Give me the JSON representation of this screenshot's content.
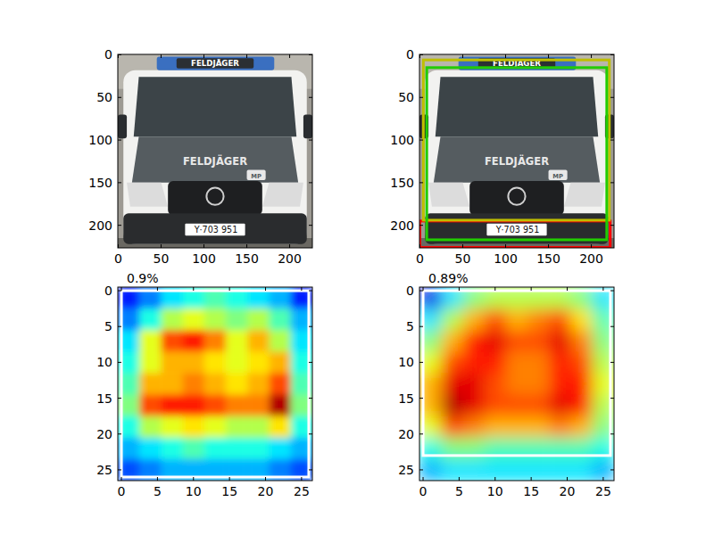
{
  "chart_data": [
    {
      "type": "image",
      "xlim": [
        -0.5,
        226.5
      ],
      "ylim": [
        226.5,
        -0.5
      ],
      "xticks": [
        0,
        50,
        100,
        150,
        200
      ],
      "yticks": [
        0,
        50,
        100,
        150,
        200
      ],
      "image_text": [
        "FELDJÄGER",
        "FELDJÄGER",
        "MP",
        "Y·703 951"
      ]
    },
    {
      "type": "image",
      "xlim": [
        -0.5,
        226.5
      ],
      "ylim": [
        226.5,
        -0.5
      ],
      "xticks": [
        0,
        50,
        100,
        150,
        200
      ],
      "yticks": [
        0,
        50,
        100,
        150,
        200
      ],
      "image_text": [
        "FELDJÄGER",
        "FELDJÄGER",
        "MP",
        "Y·703 951"
      ],
      "boxes": [
        {
          "color": "#ff0000",
          "x0": 0,
          "y0": 195,
          "x1": 222,
          "y1": 226
        },
        {
          "color": "#bfbf00",
          "x0": 4,
          "y0": 6,
          "x1": 221,
          "y1": 194
        },
        {
          "color": "#22cc00",
          "x0": 8,
          "y0": 15,
          "x1": 218,
          "y1": 217
        }
      ]
    },
    {
      "type": "heatmap",
      "title": "0.9%",
      "xlim": [
        -0.5,
        26.5
      ],
      "ylim": [
        26.5,
        -0.5
      ],
      "xticks": [
        0,
        5,
        10,
        15,
        20,
        25
      ],
      "yticks": [
        0,
        5,
        10,
        15,
        20,
        25
      ],
      "color_range": [
        0,
        1
      ],
      "cells": [
        [
          0.15,
          0.25,
          0.35,
          0.4,
          0.45,
          0.4,
          0.35,
          0.3,
          0.15
        ],
        [
          0.25,
          0.4,
          0.55,
          0.6,
          0.55,
          0.5,
          0.55,
          0.45,
          0.3
        ],
        [
          0.35,
          0.6,
          0.8,
          0.85,
          0.75,
          0.6,
          0.7,
          0.55,
          0.35
        ],
        [
          0.4,
          0.6,
          0.7,
          0.7,
          0.65,
          0.6,
          0.65,
          0.7,
          0.4
        ],
        [
          0.45,
          0.7,
          0.7,
          0.75,
          0.7,
          0.65,
          0.7,
          0.8,
          0.45
        ],
        [
          0.5,
          0.8,
          0.85,
          0.85,
          0.8,
          0.75,
          0.75,
          0.95,
          0.5
        ],
        [
          0.4,
          0.55,
          0.6,
          0.65,
          0.6,
          0.55,
          0.55,
          0.65,
          0.4
        ],
        [
          0.3,
          0.35,
          0.4,
          0.45,
          0.4,
          0.4,
          0.4,
          0.35,
          0.3
        ],
        [
          0.2,
          0.25,
          0.3,
          0.3,
          0.3,
          0.3,
          0.3,
          0.25,
          0.2
        ]
      ],
      "boxes": [
        {
          "color": "#ffffff",
          "x0": 0,
          "y0": 0,
          "x1": 26,
          "y1": 26
        }
      ]
    },
    {
      "type": "heatmap",
      "title": "0.89%",
      "xlim": [
        -0.5,
        26.5
      ],
      "ylim": [
        26.5,
        -0.5
      ],
      "xticks": [
        0,
        5,
        10,
        15,
        20,
        25
      ],
      "yticks": [
        0,
        5,
        10,
        15,
        20,
        25
      ],
      "color_range": [
        0,
        1
      ],
      "cells": [
        [
          0.1,
          0.35,
          0.5,
          0.55,
          0.55,
          0.55,
          0.55,
          0.5,
          0.35
        ],
        [
          0.35,
          0.55,
          0.7,
          0.8,
          0.7,
          0.75,
          0.8,
          0.65,
          0.45
        ],
        [
          0.5,
          0.7,
          0.85,
          0.9,
          0.8,
          0.8,
          0.9,
          0.75,
          0.5
        ],
        [
          0.6,
          0.8,
          0.85,
          0.85,
          0.75,
          0.75,
          0.85,
          0.8,
          0.55
        ],
        [
          0.7,
          0.9,
          0.9,
          0.8,
          0.75,
          0.75,
          0.85,
          0.85,
          0.6
        ],
        [
          0.7,
          0.95,
          0.9,
          0.8,
          0.8,
          0.8,
          0.9,
          0.85,
          0.55
        ],
        [
          0.6,
          0.8,
          0.75,
          0.7,
          0.7,
          0.7,
          0.75,
          0.7,
          0.5
        ],
        [
          0.4,
          0.5,
          0.5,
          0.45,
          0.45,
          0.45,
          0.45,
          0.45,
          0.4
        ],
        [
          0.3,
          0.35,
          0.35,
          0.35,
          0.35,
          0.35,
          0.35,
          0.35,
          0.3
        ]
      ],
      "boxes": [
        {
          "color": "#ffffff",
          "x0": 0,
          "y0": 0,
          "x1": 26,
          "y1": 23
        }
      ]
    }
  ]
}
